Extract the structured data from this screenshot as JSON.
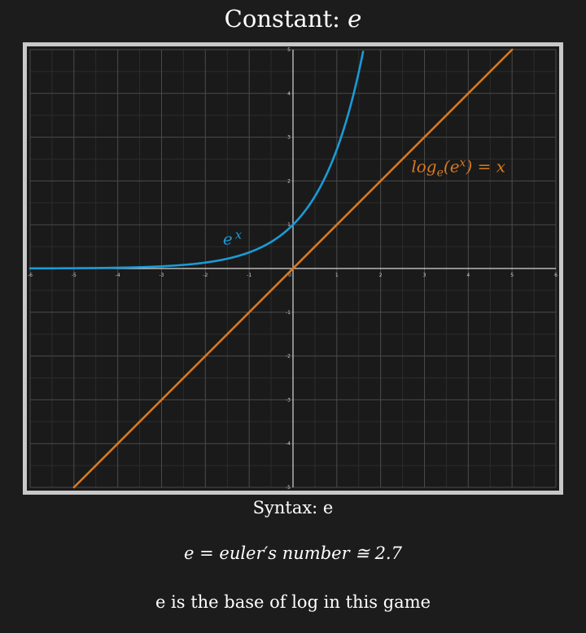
{
  "header": {
    "title_prefix": "Constant:",
    "title_constant": "e"
  },
  "footer": {
    "syntax": "Syntax: e",
    "formula": "e = euler′s number ≅ 2.7",
    "note": "e is the base of log in this game"
  },
  "colors": {
    "background": "#1c1c1c",
    "frame": "#c8c8c8",
    "exp_curve": "#1a9bd7",
    "log_line": "#d87a1e",
    "grid": "#4a4a4a",
    "axis": "#d8d8d8"
  },
  "chart_data": {
    "type": "line",
    "title": "",
    "xlabel": "",
    "ylabel": "",
    "xlim": [
      -6,
      6
    ],
    "ylim": [
      -5,
      5
    ],
    "grid": true,
    "x_ticks": [
      -6,
      -5,
      -4,
      -3,
      -2,
      -1,
      0,
      1,
      2,
      3,
      4,
      5,
      6
    ],
    "y_ticks": [
      -5,
      -4,
      -3,
      -2,
      -1,
      1,
      2,
      3,
      4,
      5
    ],
    "series": [
      {
        "name": "e^x",
        "label_base": "e",
        "label_exp": "x",
        "color": "#1a9bd7",
        "x": [
          -6,
          -5,
          -4,
          -3,
          -2.5,
          -2,
          -1.5,
          -1,
          -0.5,
          0,
          0.25,
          0.5,
          0.75,
          1,
          1.2,
          1.4,
          1.609
        ],
        "y": [
          0.0025,
          0.0067,
          0.018,
          0.05,
          0.082,
          0.135,
          0.223,
          0.368,
          0.607,
          1,
          1.284,
          1.649,
          2.117,
          2.718,
          3.32,
          4.055,
          5
        ]
      },
      {
        "name": "log_e(e^x) = x",
        "label_parts": [
          "log",
          "e",
          "(e",
          "x",
          ") = x"
        ],
        "color": "#d87a1e",
        "x": [
          -5,
          5
        ],
        "y": [
          -5,
          5
        ]
      }
    ]
  }
}
